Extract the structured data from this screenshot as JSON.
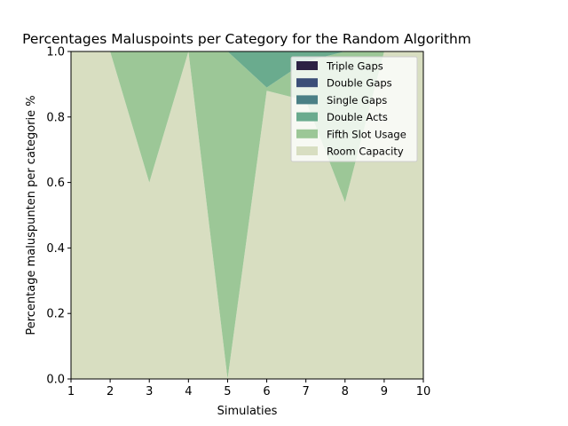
{
  "chart_data": {
    "type": "area",
    "title": "Percentages Maluspoints per Category for the Random Algorithm",
    "xlabel": "Simulaties",
    "ylabel": "Percentage maluspunten per categorie %",
    "xlim": [
      1,
      10
    ],
    "ylim": [
      0.0,
      1.0
    ],
    "x": [
      1,
      2,
      3,
      4,
      5,
      6,
      7,
      8,
      9,
      10
    ],
    "x_ticks": [
      "1",
      "2",
      "3",
      "4",
      "5",
      "6",
      "7",
      "8",
      "9",
      "10"
    ],
    "y_ticks": [
      "0.0",
      "0.2",
      "0.4",
      "0.6",
      "0.8",
      "1.0"
    ],
    "stacked": true,
    "legend_position": "top-right",
    "series": [
      {
        "name": "Room Capacity",
        "color": "#d8dec1",
        "values": [
          1.0,
          1.0,
          0.6,
          1.0,
          0.0,
          0.88,
          0.85,
          0.54,
          1.0,
          1.0
        ]
      },
      {
        "name": "Fifth Slot Usage",
        "color": "#9cc797",
        "values": [
          0.0,
          0.0,
          0.4,
          0.0,
          1.0,
          0.01,
          0.12,
          0.46,
          0.0,
          0.0
        ]
      },
      {
        "name": "Double Acts",
        "color": "#6aab8e",
        "values": [
          0.0,
          0.0,
          0.0,
          0.0,
          0.0,
          0.11,
          0.03,
          0.0,
          0.0,
          0.0
        ]
      },
      {
        "name": "Single Gaps",
        "color": "#4a7f85",
        "values": [
          0.0,
          0.0,
          0.0,
          0.0,
          0.0,
          0.0,
          0.0,
          0.0,
          0.0,
          0.0
        ]
      },
      {
        "name": "Double Gaps",
        "color": "#3b4e78",
        "values": [
          0.0,
          0.0,
          0.0,
          0.0,
          0.0,
          0.0,
          0.0,
          0.0,
          0.0,
          0.0
        ]
      },
      {
        "name": "Triple Gaps",
        "color": "#2c2143",
        "values": [
          0.0,
          0.0,
          0.0,
          0.0,
          0.0,
          0.0,
          0.0,
          0.0,
          0.0,
          0.0
        ]
      }
    ],
    "legend_order": [
      "Triple Gaps",
      "Double Gaps",
      "Single Gaps",
      "Double Acts",
      "Fifth Slot Usage",
      "Room Capacity"
    ]
  }
}
